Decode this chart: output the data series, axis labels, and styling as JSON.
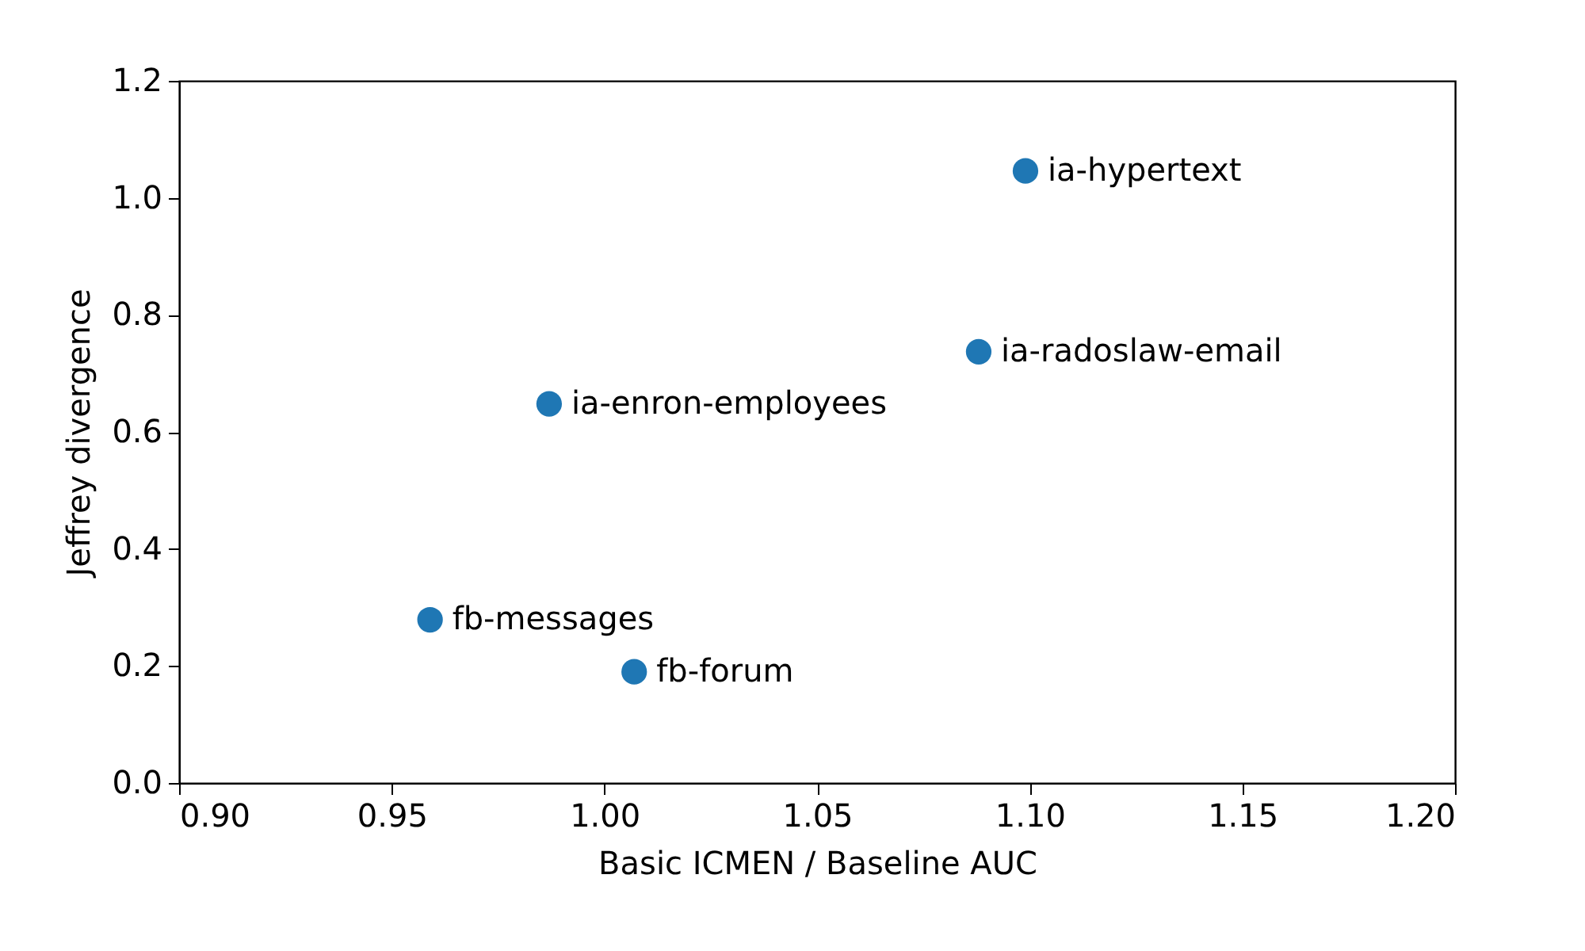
{
  "chart_data": {
    "type": "scatter",
    "xlabel": "Basic ICMEN / Baseline AUC",
    "ylabel": "Jeffrey divergence",
    "x": [
      1.099,
      1.088,
      0.987,
      0.959,
      1.007
    ],
    "series": [
      {
        "color": "#1f77b4",
        "values": [
          1.046,
          0.737,
          0.648,
          0.279,
          0.19
        ]
      }
    ],
    "annotations": [
      {
        "text": "ia-hypertext",
        "x": 1.099,
        "y": 1.046
      },
      {
        "text": "ia-radoslaw-email",
        "x": 1.088,
        "y": 0.737
      },
      {
        "text": "ia-enron-employees",
        "x": 0.987,
        "y": 0.648
      },
      {
        "text": "fb-messages",
        "x": 0.959,
        "y": 0.279
      },
      {
        "text": "fb-forum",
        "x": 1.007,
        "y": 0.19
      }
    ],
    "xlim": [
      0.9,
      1.2
    ],
    "ylim": [
      0,
      1.2
    ],
    "xticks": [
      {
        "value": 0.9,
        "label": "0.90"
      },
      {
        "value": 0.95,
        "label": "0.95"
      },
      {
        "value": 1.0,
        "label": "1.00"
      },
      {
        "value": 1.05,
        "label": "1.05"
      },
      {
        "value": 1.1,
        "label": "1.10"
      },
      {
        "value": 1.15,
        "label": "1.15"
      },
      {
        "value": 1.2,
        "label": "1.20"
      }
    ],
    "yticks": [
      {
        "value": 0,
        "label": "0.0"
      },
      {
        "value": 0.2,
        "label": "0.2"
      },
      {
        "value": 0.4,
        "label": "0.4"
      },
      {
        "value": 0.6,
        "label": "0.6"
      },
      {
        "value": 0.8,
        "label": "0.8"
      },
      {
        "value": 1.0,
        "label": "1.0"
      },
      {
        "value": 1.2,
        "label": "1.2"
      }
    ],
    "grid": false,
    "marker": "circle"
  }
}
